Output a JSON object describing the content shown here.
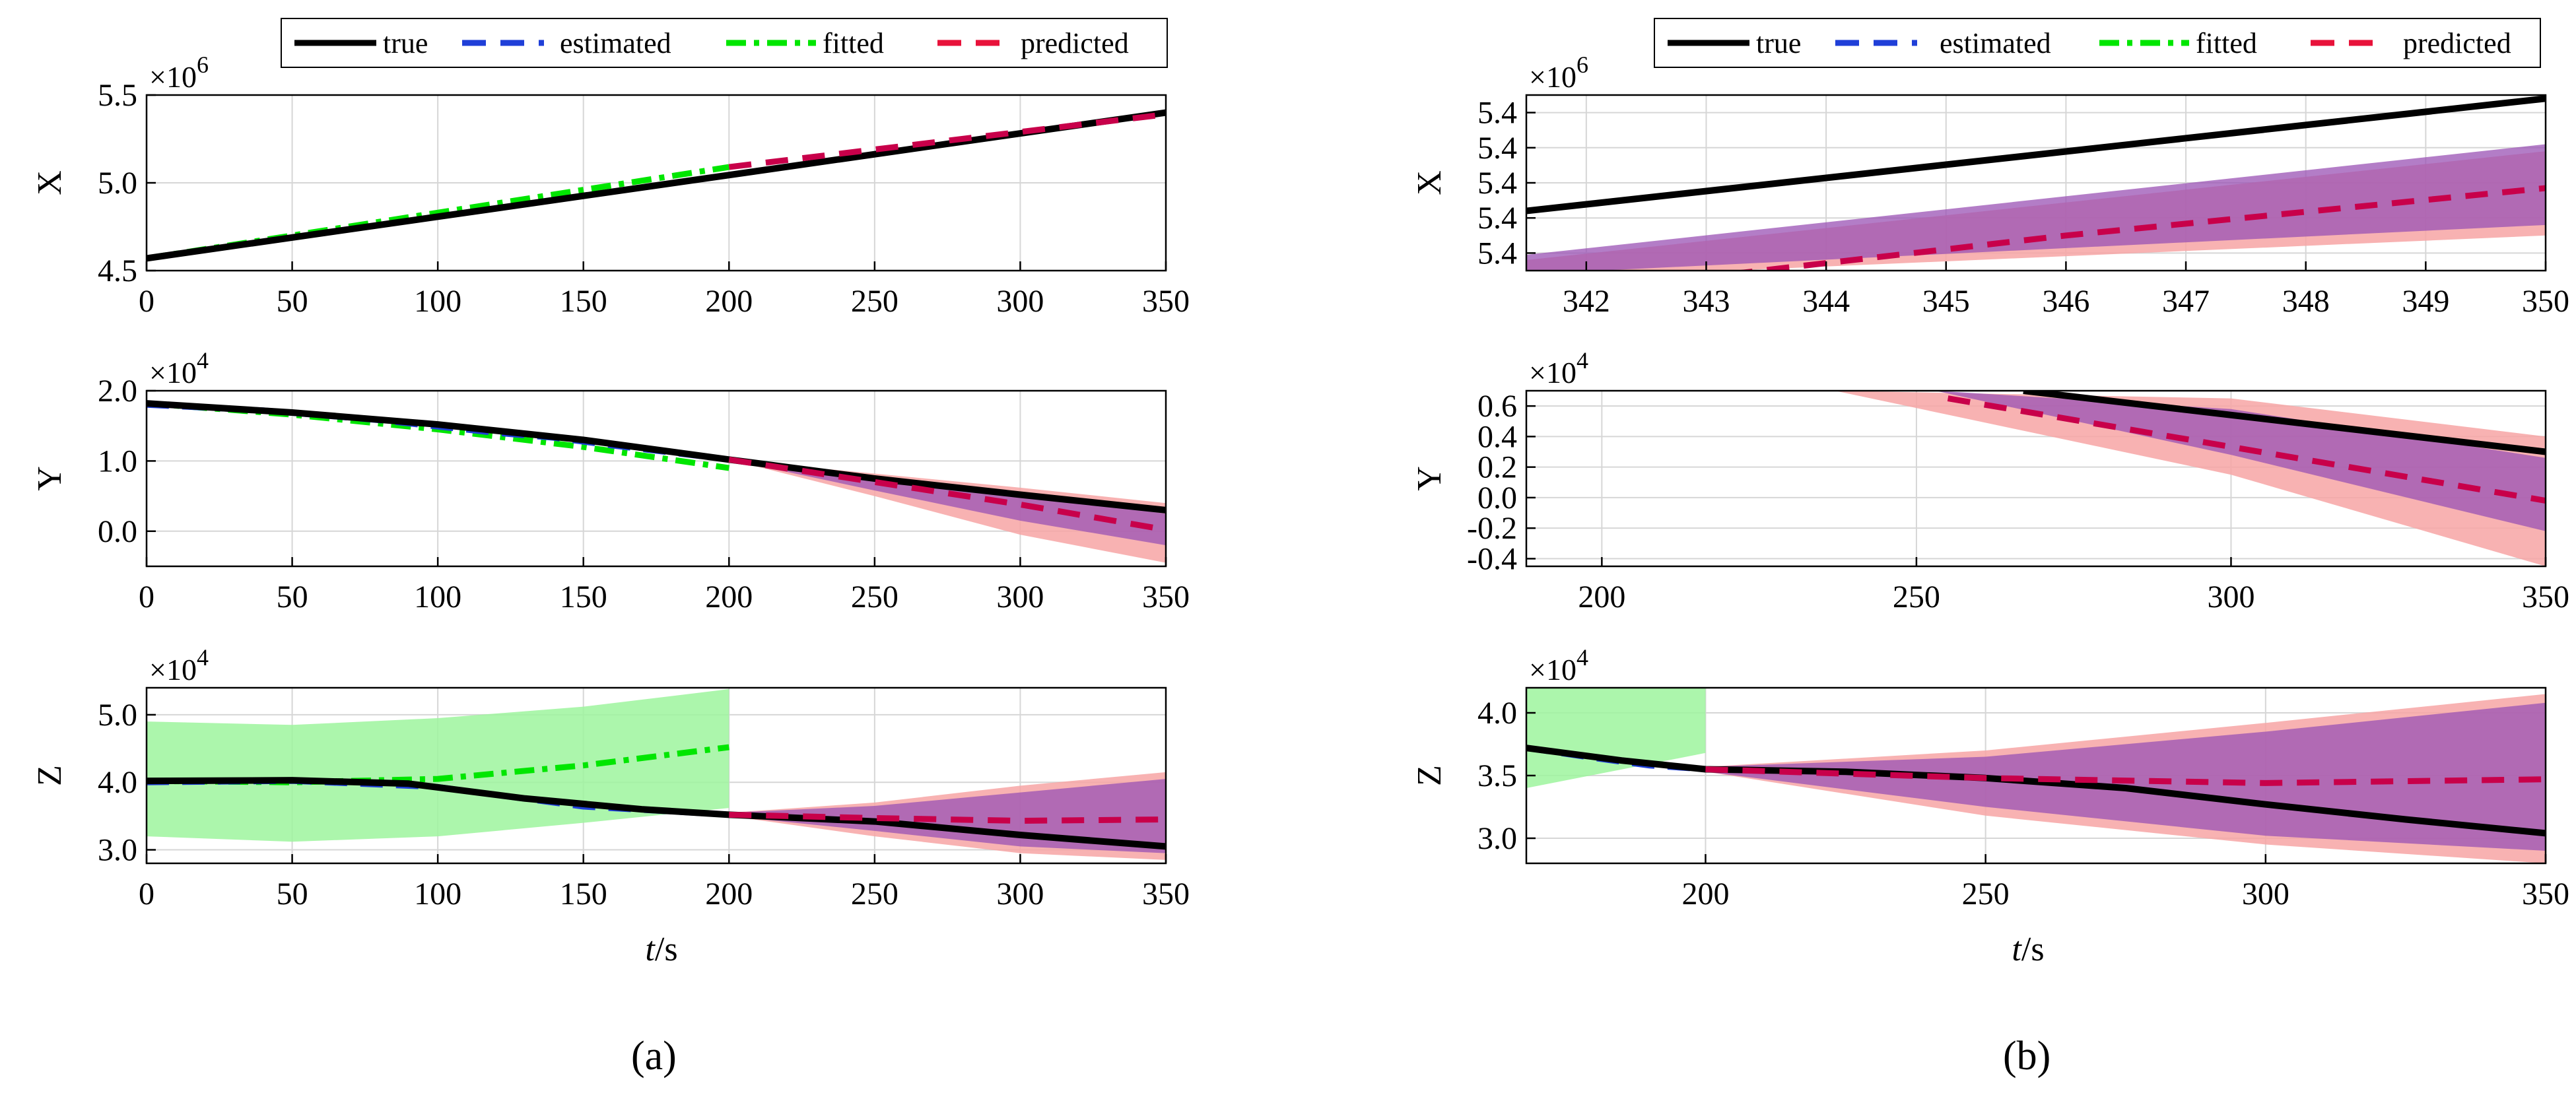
{
  "figure": {
    "subfigure_labels": [
      "(a)",
      "(b)"
    ],
    "xlabel": "t/s"
  },
  "legend": {
    "entries": [
      {
        "label": "true",
        "color": "#000000",
        "style": "solid"
      },
      {
        "label": "estimated",
        "color": "#0000ff",
        "style": "dashed"
      },
      {
        "label": "fitted",
        "color": "#00ee00",
        "style": "dashdot"
      },
      {
        "label": "predicted",
        "color": "#ff0000",
        "style": "dashed"
      }
    ]
  },
  "colors": {
    "true": "#000000",
    "estimated": "#1f3fd8",
    "fitted": "#00e600",
    "predicted": "#c8004a",
    "fitted_band": "#9ef59e",
    "pred_band": "#f7a5a5",
    "est_band": "#9a9aef",
    "overlap": "#9a52b4"
  },
  "chart_data": [
    {
      "id": "a-X",
      "type": "line",
      "panel": "a",
      "ylabel": "X",
      "exponent": "×10^6",
      "exp_base": "×10",
      "exp_pow": "6",
      "xlim": [
        0,
        350
      ],
      "ylim": [
        4.5,
        5.5
      ],
      "xticks": [
        0,
        50,
        100,
        150,
        200,
        250,
        300,
        350
      ],
      "xtick_labels": [
        "0",
        "50",
        "100",
        "150",
        "200",
        "250",
        "300",
        "350"
      ],
      "yticks": [
        4.5,
        5.0,
        5.5
      ],
      "ytick_labels": [
        "4.5",
        "5.0",
        "5.5"
      ],
      "series": [
        {
          "name": "true",
          "x": [
            0,
            350
          ],
          "y": [
            4.57,
            5.4
          ]
        },
        {
          "name": "fitted",
          "x": [
            0,
            200
          ],
          "y": [
            4.57,
            5.09
          ]
        },
        {
          "name": "predicted",
          "x": [
            200,
            350
          ],
          "y": [
            5.09,
            5.39
          ]
        }
      ]
    },
    {
      "id": "a-Y",
      "type": "line",
      "panel": "a",
      "ylabel": "Y",
      "exponent": "×10^4",
      "exp_base": "×10",
      "exp_pow": "4",
      "xlim": [
        0,
        350
      ],
      "ylim": [
        -0.5,
        2.0
      ],
      "xticks": [
        0,
        50,
        100,
        150,
        200,
        250,
        300,
        350
      ],
      "xtick_labels": [
        "0",
        "50",
        "100",
        "150",
        "200",
        "250",
        "300",
        "350"
      ],
      "yticks": [
        0.0,
        1.0,
        2.0
      ],
      "ytick_labels": [
        "0.0",
        "1.0",
        "2.0"
      ],
      "series": [
        {
          "name": "true",
          "x": [
            0,
            50,
            100,
            150,
            200,
            250,
            300,
            350
          ],
          "y": [
            1.82,
            1.69,
            1.52,
            1.3,
            1.02,
            0.75,
            0.52,
            0.3
          ]
        },
        {
          "name": "estimated",
          "x": [
            0,
            40,
            80,
            120,
            140,
            160,
            180,
            200
          ],
          "y": [
            1.8,
            1.72,
            1.58,
            1.4,
            1.33,
            1.22,
            1.12,
            1.02
          ]
        },
        {
          "name": "fitted",
          "x": [
            0,
            50,
            100,
            150,
            200
          ],
          "y": [
            1.82,
            1.66,
            1.45,
            1.2,
            0.9
          ]
        },
        {
          "name": "predicted",
          "x": [
            200,
            250,
            300,
            350
          ],
          "y": [
            1.02,
            0.7,
            0.38,
            0.02
          ]
        }
      ],
      "bands": [
        {
          "name": "predicted-band",
          "x": [
            200,
            250,
            300,
            350
          ],
          "low": [
            1.02,
            0.5,
            -0.05,
            -0.45
          ],
          "high": [
            1.02,
            0.82,
            0.62,
            0.4
          ]
        },
        {
          "name": "estimated-band",
          "x": [
            200,
            250,
            300,
            350
          ],
          "low": [
            1.02,
            0.58,
            0.15,
            -0.2
          ],
          "high": [
            1.02,
            0.78,
            0.52,
            0.25
          ]
        }
      ]
    },
    {
      "id": "a-Z",
      "type": "line",
      "panel": "a",
      "ylabel": "Z",
      "exponent": "×10^4",
      "exp_base": "×10",
      "exp_pow": "4",
      "xlim": [
        0,
        350
      ],
      "ylim": [
        2.8,
        5.4
      ],
      "xticks": [
        0,
        50,
        100,
        150,
        200,
        250,
        300,
        350
      ],
      "xtick_labels": [
        "0",
        "50",
        "100",
        "150",
        "200",
        "250",
        "300",
        "350"
      ],
      "yticks": [
        3.0,
        4.0,
        5.0
      ],
      "ytick_labels": [
        "3.0",
        "4.0",
        "5.0"
      ],
      "series": [
        {
          "name": "true",
          "x": [
            0,
            50,
            90,
            130,
            170,
            200,
            250,
            300,
            350
          ],
          "y": [
            4.02,
            4.03,
            3.98,
            3.76,
            3.6,
            3.52,
            3.42,
            3.22,
            3.05
          ]
        },
        {
          "name": "estimated",
          "x": [
            0,
            50,
            100,
            150,
            200
          ],
          "y": [
            4.0,
            4.02,
            3.93,
            3.64,
            3.52
          ]
        },
        {
          "name": "fitted",
          "x": [
            0,
            50,
            100,
            150,
            200
          ],
          "y": [
            4.02,
            4.0,
            4.05,
            4.25,
            4.52
          ]
        },
        {
          "name": "predicted",
          "x": [
            200,
            250,
            300,
            350
          ],
          "y": [
            3.52,
            3.47,
            3.43,
            3.45
          ]
        }
      ],
      "bands": [
        {
          "name": "fitted-band",
          "x": [
            0,
            50,
            100,
            150,
            200
          ],
          "low": [
            3.2,
            3.12,
            3.2,
            3.4,
            3.62
          ],
          "high": [
            4.9,
            4.85,
            4.95,
            5.12,
            5.38
          ]
        },
        {
          "name": "predicted-band",
          "x": [
            200,
            250,
            300,
            350
          ],
          "low": [
            3.5,
            3.2,
            2.95,
            2.85
          ],
          "high": [
            3.55,
            3.7,
            3.95,
            4.15
          ]
        },
        {
          "name": "estimated-band",
          "x": [
            200,
            250,
            300,
            350
          ],
          "low": [
            3.5,
            3.28,
            3.05,
            2.95
          ],
          "high": [
            3.55,
            3.65,
            3.85,
            4.05
          ]
        }
      ]
    },
    {
      "id": "b-X",
      "type": "line",
      "panel": "b",
      "ylabel": "X",
      "exponent": "×10^6",
      "exp_base": "×10",
      "exp_pow": "6",
      "xlim": [
        341.5,
        350
      ],
      "ylim": [
        0,
        1
      ],
      "xticks": [
        342,
        343,
        344,
        345,
        346,
        347,
        348,
        349,
        350
      ],
      "xtick_labels": [
        "342",
        "343",
        "344",
        "345",
        "346",
        "347",
        "348",
        "349",
        "350"
      ],
      "yticks": [
        0.1,
        0.3,
        0.5,
        0.7,
        0.9
      ],
      "ytick_labels": [
        "5.4",
        "5.4",
        "5.4",
        "5.4",
        "5.4"
      ],
      "series": [
        {
          "name": "true",
          "x": [
            341.5,
            350
          ],
          "y": [
            0.34,
            0.98
          ]
        },
        {
          "name": "predicted",
          "x": [
            343.2,
            346,
            350
          ],
          "y": [
            -0.02,
            0.2,
            0.47
          ]
        }
      ],
      "bands": [
        {
          "name": "predicted-band",
          "x": [
            341.5,
            350
          ],
          "low": [
            -0.05,
            0.2
          ],
          "high": [
            0.06,
            0.68
          ]
        },
        {
          "name": "estimated-band",
          "x": [
            341.5,
            350
          ],
          "low": [
            -0.02,
            0.26
          ],
          "high": [
            0.09,
            0.72
          ]
        }
      ]
    },
    {
      "id": "b-Y",
      "type": "line",
      "panel": "b",
      "ylabel": "Y",
      "exponent": "×10^4",
      "exp_base": "×10",
      "exp_pow": "4",
      "xlim": [
        188,
        350
      ],
      "ylim": [
        -0.45,
        0.7
      ],
      "xticks": [
        200,
        250,
        300,
        350
      ],
      "xtick_labels": [
        "200",
        "250",
        "300",
        "350"
      ],
      "yticks": [
        -0.4,
        -0.2,
        0.0,
        0.2,
        0.4,
        0.6
      ],
      "ytick_labels": [
        "-0.4",
        "-0.2",
        "0.0",
        "0.2",
        "0.4",
        "0.6"
      ],
      "series": [
        {
          "name": "true",
          "x": [
            267,
            350
          ],
          "y": [
            0.7,
            0.3
          ]
        },
        {
          "name": "predicted",
          "x": [
            255,
            350
          ],
          "y": [
            0.65,
            -0.02
          ]
        }
      ],
      "bands": [
        {
          "name": "predicted-band",
          "x": [
            237,
            300,
            350
          ],
          "low": [
            0.7,
            0.15,
            -0.45
          ],
          "high": [
            0.7,
            0.65,
            0.4
          ]
        },
        {
          "name": "estimated-band",
          "x": [
            253,
            300,
            350
          ],
          "low": [
            0.7,
            0.28,
            -0.22
          ],
          "high": [
            0.7,
            0.58,
            0.26
          ]
        }
      ]
    },
    {
      "id": "b-Z",
      "type": "line",
      "panel": "b",
      "ylabel": "Z",
      "exponent": "×10^4",
      "exp_base": "×10",
      "exp_pow": "4",
      "xlim": [
        168,
        350
      ],
      "ylim": [
        2.8,
        4.2
      ],
      "xticks": [
        200,
        250,
        300,
        350
      ],
      "xtick_labels": [
        "200",
        "250",
        "300",
        "350"
      ],
      "yticks": [
        3.0,
        3.5,
        4.0
      ],
      "ytick_labels": [
        "3.0",
        "3.5",
        "4.0"
      ],
      "series": [
        {
          "name": "true",
          "x": [
            168,
            185,
            200,
            225,
            250,
            275,
            300,
            325,
            350
          ],
          "y": [
            3.72,
            3.62,
            3.55,
            3.53,
            3.48,
            3.4,
            3.27,
            3.15,
            3.04
          ]
        },
        {
          "name": "estimated",
          "x": [
            168,
            180,
            190,
            200
          ],
          "y": [
            3.72,
            3.64,
            3.58,
            3.55
          ]
        },
        {
          "name": "predicted",
          "x": [
            200,
            250,
            300,
            350
          ],
          "y": [
            3.55,
            3.48,
            3.44,
            3.47
          ]
        }
      ],
      "bands": [
        {
          "name": "fitted-band",
          "x": [
            168,
            200
          ],
          "low": [
            3.4,
            3.68
          ],
          "high": [
            4.2,
            4.2
          ]
        },
        {
          "name": "predicted-band",
          "x": [
            200,
            250,
            300,
            350
          ],
          "low": [
            3.53,
            3.18,
            2.95,
            2.8
          ],
          "high": [
            3.57,
            3.7,
            3.92,
            4.15
          ]
        },
        {
          "name": "estimated-band",
          "x": [
            200,
            250,
            300,
            350
          ],
          "low": [
            3.53,
            3.25,
            3.02,
            2.9
          ],
          "high": [
            3.57,
            3.65,
            3.85,
            4.08
          ]
        }
      ]
    }
  ]
}
